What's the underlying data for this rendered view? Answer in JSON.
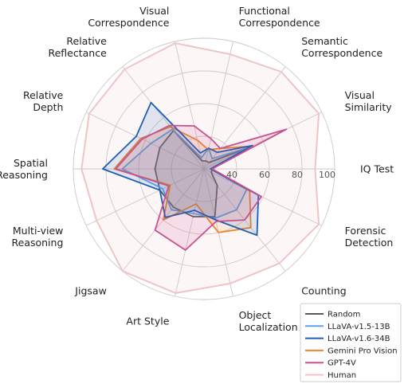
{
  "chart_data": {
    "type": "radar",
    "axes": [
      "IQ Test",
      "Visual Similarity",
      "Semantic Correspondence",
      "Functional Correspondence",
      "Visual Correspondence",
      "Relative Reflectance",
      "Relative Depth",
      "Spatial Reasoning",
      "Multi-view Reasoning",
      "Jigsaw",
      "Art Style",
      "Object Localization",
      "Counting",
      "Forensic Detection"
    ],
    "axis_label_lines": [
      [
        "IQ Test"
      ],
      [
        "Visual",
        "Similarity"
      ],
      [
        "Semantic",
        "Correspondence"
      ],
      [
        "Functional",
        "Correspondence"
      ],
      [
        "Visual",
        "Correspondence"
      ],
      [
        "Relative",
        "Reflectance"
      ],
      [
        "Relative",
        "Depth"
      ],
      [
        "Spatial",
        "Reasoning"
      ],
      [
        "Multi-view",
        "Reasoning"
      ],
      [
        "Jigsaw"
      ],
      [
        "Art Style"
      ],
      [
        "Object",
        "Localization"
      ],
      [
        "Counting"
      ],
      [
        "Forensic",
        "Detection"
      ]
    ],
    "r_ticks": [
      40,
      60,
      80,
      100
    ],
    "r_range": [
      20,
      100
    ],
    "grid": true,
    "legend_position": "bottom-right",
    "series": [
      {
        "name": "Random",
        "color": "#595959",
        "values": [
          25,
          50,
          25,
          25,
          25,
          50,
          50,
          50,
          50,
          50,
          50,
          50,
          33,
          25
        ]
      },
      {
        "name": "LLaVA-v1.5-13B",
        "color": "#58a4ec",
        "values": [
          24,
          50,
          28,
          33,
          27,
          51,
          56,
          70,
          48,
          52,
          48,
          51,
          52,
          49
        ]
      },
      {
        "name": "LLaVA-v1.6-34B",
        "color": "#1a5fb4",
        "values": [
          24,
          53,
          33,
          33,
          30,
          72,
          66,
          82,
          50,
          58,
          46,
          52,
          72,
          57
        ]
      },
      {
        "name": "Gemini Pro Vision",
        "color": "#e8882a",
        "values": [
          25,
          52,
          36,
          32,
          38,
          53,
          63,
          75,
          43,
          60,
          42,
          60,
          66,
          51
        ]
      },
      {
        "name": "GPT-4V",
        "color": "#c9518e",
        "values": [
          25,
          76,
          36,
          39,
          47,
          54,
          62,
          74,
          44,
          68,
          71,
          53,
          60,
          59
        ]
      },
      {
        "name": "Human",
        "color": "#f0c4c6",
        "values": [
          88,
          98,
          96,
          92,
          99,
          98,
          98,
          95,
          93,
          100,
          98,
          92,
          94,
          98
        ]
      }
    ]
  }
}
